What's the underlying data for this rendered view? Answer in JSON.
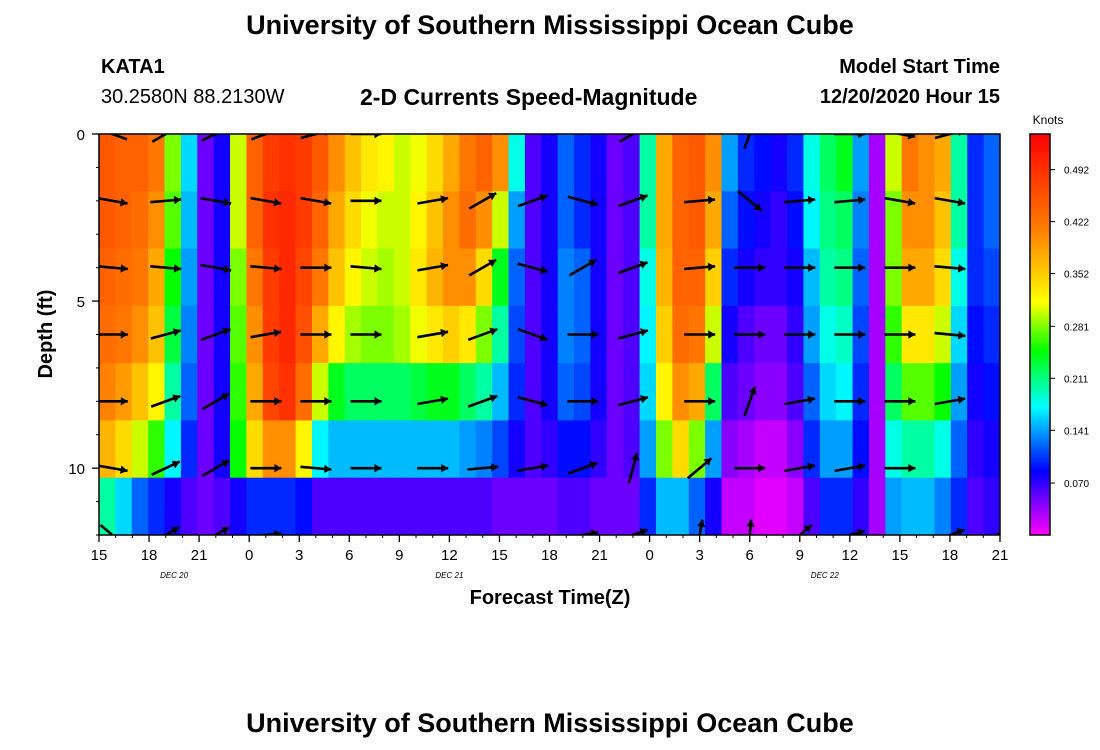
{
  "titles": {
    "top": "University of Southern Mississippi Ocean Cube",
    "bottom": "University of Southern Mississippi Ocean Cube"
  },
  "station": {
    "id": "KATA1",
    "coords": "30.2580N 88.2130W"
  },
  "plot_title": "2-D Currents Speed-Magnitude",
  "model": {
    "label": "Model Start Time",
    "time": "12/20/2020 Hour 15"
  },
  "chart_data": {
    "type": "heatmap",
    "title": "2-D Currents Speed-Magnitude",
    "xlabel": "Forecast Time(Z)",
    "ylabel": "Depth (ft)",
    "x_tick_labels": [
      "15",
      "18",
      "21",
      "0",
      "3",
      "6",
      "9",
      "12",
      "15",
      "18",
      "21",
      "0",
      "3",
      "6",
      "9",
      "12",
      "15",
      "18",
      "21"
    ],
    "date_labels": [
      {
        "text": "DEC  20",
        "hour": 4.5
      },
      {
        "text": "DEC  21",
        "hour": 21
      },
      {
        "text": "DEC  22",
        "hour": 43.5
      }
    ],
    "x_range_hours": [
      0,
      54
    ],
    "y_ticks": [
      0,
      5,
      10
    ],
    "y_tick_labels": [
      "0",
      "5",
      "10"
    ],
    "ylim": [
      0,
      12
    ],
    "depth_levels": [
      0,
      2,
      4,
      6,
      8,
      10,
      12
    ],
    "colorbar": {
      "title": "Knots",
      "labels": [
        "0.492",
        "0.422",
        "0.352",
        "0.281",
        "0.211",
        "0.141",
        "0.070"
      ],
      "range": [
        0.0,
        0.54
      ]
    },
    "speed_grid_knots": [
      [
        0.45,
        0.44,
        0.44,
        0.42,
        0.28,
        0.16,
        0.05,
        0.08,
        0.3,
        0.44,
        0.48,
        0.49,
        0.48,
        0.45,
        0.4,
        0.36,
        0.33,
        0.32,
        0.3,
        0.31,
        0.34,
        0.38,
        0.42,
        0.44,
        0.4,
        0.18,
        0.06,
        0.08,
        0.12,
        0.1,
        0.08,
        0.05,
        0.06,
        0.2,
        0.38,
        0.44,
        0.45,
        0.4,
        0.14,
        0.1,
        0.09,
        0.08,
        0.1,
        0.18,
        0.22,
        0.24,
        0.14,
        0.03,
        0.3,
        0.42,
        0.4,
        0.38,
        0.2,
        0.1,
        0.12
      ],
      [
        0.45,
        0.44,
        0.43,
        0.4,
        0.27,
        0.15,
        0.05,
        0.08,
        0.3,
        0.44,
        0.49,
        0.5,
        0.48,
        0.44,
        0.38,
        0.34,
        0.31,
        0.3,
        0.3,
        0.32,
        0.36,
        0.4,
        0.43,
        0.4,
        0.3,
        0.14,
        0.06,
        0.08,
        0.12,
        0.1,
        0.08,
        0.05,
        0.06,
        0.2,
        0.38,
        0.44,
        0.45,
        0.38,
        0.12,
        0.09,
        0.08,
        0.07,
        0.09,
        0.17,
        0.21,
        0.22,
        0.13,
        0.03,
        0.28,
        0.4,
        0.4,
        0.36,
        0.2,
        0.1,
        0.12
      ],
      [
        0.44,
        0.43,
        0.42,
        0.38,
        0.25,
        0.14,
        0.05,
        0.08,
        0.28,
        0.42,
        0.48,
        0.5,
        0.47,
        0.42,
        0.36,
        0.32,
        0.3,
        0.29,
        0.3,
        0.33,
        0.37,
        0.4,
        0.4,
        0.34,
        0.24,
        0.12,
        0.06,
        0.08,
        0.13,
        0.12,
        0.08,
        0.05,
        0.06,
        0.18,
        0.37,
        0.44,
        0.44,
        0.35,
        0.1,
        0.08,
        0.07,
        0.07,
        0.08,
        0.15,
        0.2,
        0.21,
        0.12,
        0.03,
        0.28,
        0.38,
        0.38,
        0.34,
        0.18,
        0.1,
        0.11
      ],
      [
        0.43,
        0.42,
        0.4,
        0.36,
        0.23,
        0.13,
        0.05,
        0.08,
        0.27,
        0.4,
        0.48,
        0.5,
        0.46,
        0.38,
        0.32,
        0.29,
        0.28,
        0.28,
        0.29,
        0.31,
        0.33,
        0.35,
        0.33,
        0.28,
        0.2,
        0.11,
        0.06,
        0.08,
        0.13,
        0.12,
        0.08,
        0.05,
        0.06,
        0.17,
        0.35,
        0.43,
        0.42,
        0.3,
        0.08,
        0.06,
        0.05,
        0.05,
        0.07,
        0.14,
        0.18,
        0.19,
        0.11,
        0.03,
        0.26,
        0.33,
        0.33,
        0.3,
        0.16,
        0.09,
        0.1
      ],
      [
        0.41,
        0.39,
        0.36,
        0.32,
        0.2,
        0.12,
        0.05,
        0.08,
        0.26,
        0.38,
        0.47,
        0.49,
        0.43,
        0.3,
        0.24,
        0.22,
        0.22,
        0.22,
        0.22,
        0.23,
        0.24,
        0.24,
        0.22,
        0.2,
        0.15,
        0.1,
        0.06,
        0.08,
        0.12,
        0.11,
        0.08,
        0.05,
        0.06,
        0.16,
        0.32,
        0.4,
        0.38,
        0.22,
        0.06,
        0.05,
        0.04,
        0.04,
        0.06,
        0.12,
        0.16,
        0.17,
        0.1,
        0.03,
        0.22,
        0.27,
        0.27,
        0.25,
        0.14,
        0.08,
        0.09
      ],
      [
        0.37,
        0.34,
        0.3,
        0.26,
        0.17,
        0.1,
        0.05,
        0.08,
        0.25,
        0.34,
        0.4,
        0.4,
        0.32,
        0.17,
        0.15,
        0.15,
        0.15,
        0.15,
        0.15,
        0.15,
        0.15,
        0.15,
        0.14,
        0.13,
        0.11,
        0.08,
        0.06,
        0.07,
        0.09,
        0.09,
        0.07,
        0.05,
        0.06,
        0.14,
        0.28,
        0.34,
        0.28,
        0.14,
        0.04,
        0.03,
        0.02,
        0.02,
        0.04,
        0.1,
        0.14,
        0.14,
        0.09,
        0.03,
        0.18,
        0.2,
        0.2,
        0.18,
        0.12,
        0.07,
        0.08
      ],
      [
        0.2,
        0.16,
        0.12,
        0.1,
        0.08,
        0.06,
        0.05,
        0.06,
        0.08,
        0.1,
        0.1,
        0.1,
        0.09,
        0.06,
        0.06,
        0.06,
        0.06,
        0.06,
        0.06,
        0.06,
        0.06,
        0.06,
        0.06,
        0.06,
        0.05,
        0.05,
        0.05,
        0.05,
        0.06,
        0.06,
        0.05,
        0.05,
        0.05,
        0.1,
        0.15,
        0.15,
        0.12,
        0.08,
        0.02,
        0.02,
        0.01,
        0.01,
        0.02,
        0.06,
        0.1,
        0.1,
        0.07,
        0.03,
        0.14,
        0.15,
        0.15,
        0.13,
        0.1,
        0.06,
        0.07
      ]
    ],
    "vector_columns_hours": [
      0.8,
      4,
      7,
      10,
      13,
      16,
      20,
      23,
      26,
      29,
      32,
      36,
      39,
      42,
      45,
      48,
      51,
      53.8
    ],
    "vector_rows_ft": [
      0,
      2,
      4,
      6,
      8,
      10,
      12
    ],
    "vector_directions_deg": [
      [
        200,
        -30,
        -25,
        -20,
        -15,
        0,
        null,
        null,
        null,
        null,
        -30,
        null,
        -70,
        null,
        0,
        10,
        -15,
        null
      ],
      [
        10,
        -5,
        10,
        10,
        10,
        0,
        -10,
        -30,
        -20,
        15,
        -20,
        -5,
        40,
        -5,
        -5,
        10,
        10,
        null
      ],
      [
        5,
        5,
        10,
        5,
        0,
        5,
        -10,
        -30,
        15,
        -30,
        -20,
        -5,
        0,
        0,
        0,
        0,
        5,
        null
      ],
      [
        0,
        -15,
        -20,
        -10,
        0,
        0,
        -10,
        -20,
        20,
        0,
        -15,
        0,
        0,
        0,
        0,
        0,
        5,
        null
      ],
      [
        0,
        -20,
        -30,
        0,
        0,
        0,
        -10,
        -20,
        15,
        0,
        -15,
        0,
        -70,
        -10,
        0,
        0,
        -10,
        null
      ],
      [
        10,
        -25,
        -30,
        0,
        5,
        0,
        0,
        -5,
        -10,
        -20,
        -75,
        -40,
        0,
        -10,
        -10,
        0,
        null,
        null
      ],
      [
        40,
        -30,
        -30,
        -5,
        null,
        null,
        null,
        null,
        null,
        -10,
        -20,
        -80,
        -85,
        -40,
        -15,
        null,
        -20,
        -30
      ]
    ]
  }
}
